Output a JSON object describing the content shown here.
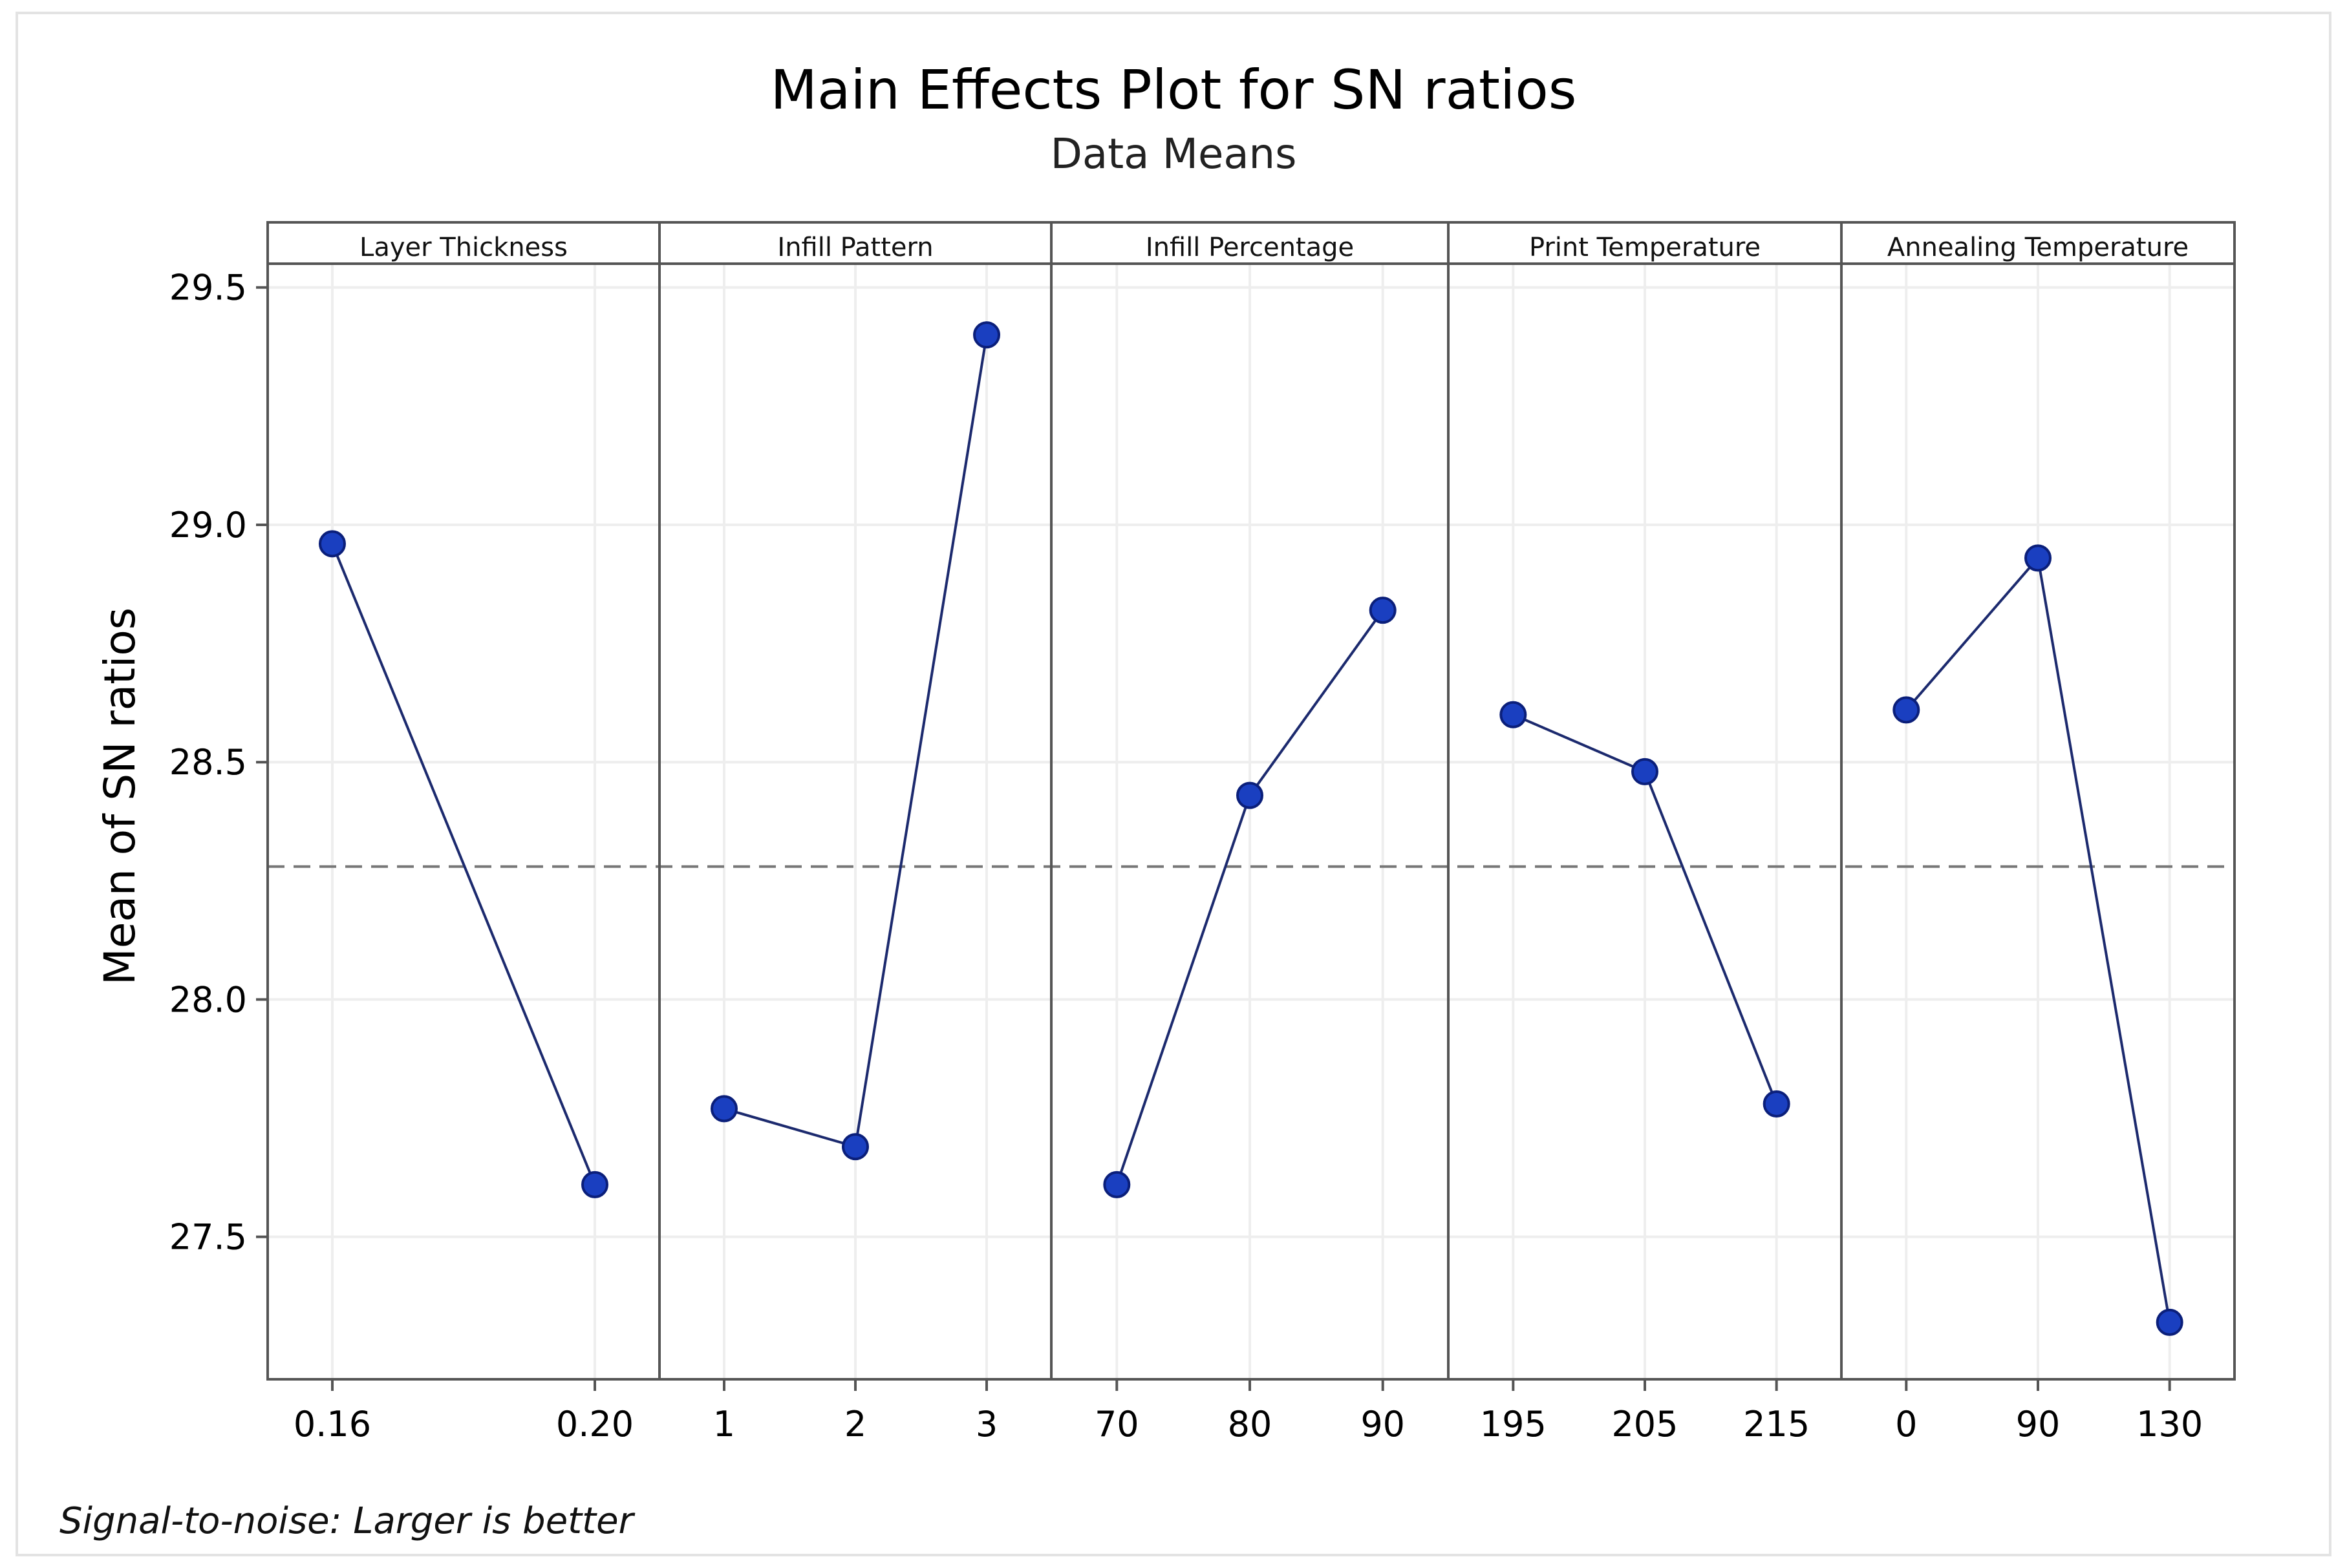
{
  "chart_data": {
    "type": "line",
    "title": "Main Effects Plot for SN ratios",
    "subtitle": "Data Means",
    "ylabel": "Mean of SN ratios",
    "ylim": [
      27.2,
      29.55
    ],
    "yticks": [
      "27.5",
      "28.0",
      "28.5",
      "29.0",
      "29.5"
    ],
    "reference_line": 28.28,
    "grid": true,
    "footnote": "Signal-to-noise: Larger is better",
    "colors": {
      "marker": "#1a3fc0",
      "line": "#1c2a6e",
      "reference": "#777777",
      "frame": "#555555",
      "grid": "#eeeeee"
    },
    "panels": [
      {
        "name": "Layer Thickness",
        "categories": [
          "0.16",
          "0.20"
        ],
        "values": [
          28.96,
          27.61
        ]
      },
      {
        "name": "Infill Pattern",
        "categories": [
          "1",
          "2",
          "3"
        ],
        "values": [
          27.77,
          27.69,
          29.4
        ]
      },
      {
        "name": "Infill Percentage",
        "categories": [
          "70",
          "80",
          "90"
        ],
        "values": [
          27.61,
          28.43,
          28.82
        ]
      },
      {
        "name": "Print Temperature",
        "categories": [
          "195",
          "205",
          "215"
        ],
        "values": [
          28.6,
          28.48,
          27.78
        ]
      },
      {
        "name": "Annealing Temperature",
        "categories": [
          "0",
          "90",
          "130"
        ],
        "values": [
          28.61,
          28.93,
          27.32
        ]
      }
    ]
  }
}
